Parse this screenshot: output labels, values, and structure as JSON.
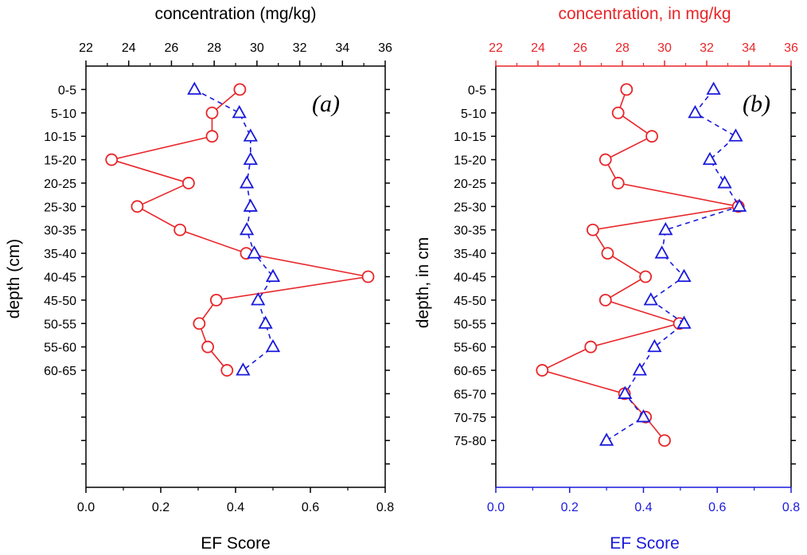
{
  "chart_data": [
    {
      "type": "line",
      "panel_label": "(a)",
      "top_axis": {
        "label": "concentration (mg/kg)",
        "range": [
          22,
          36
        ],
        "ticks": [
          "22",
          "24",
          "26",
          "28",
          "30",
          "32",
          "34",
          "36"
        ],
        "color": "#000000"
      },
      "bottom_axis": {
        "label": "EF Score",
        "range": [
          0,
          0.8
        ],
        "ticks": [
          "0.0",
          "0.2",
          "0.4",
          "0.6",
          "0.8"
        ],
        "color": "#000000"
      },
      "y_axis": {
        "label": "depth (cm)",
        "categories": [
          "0-5",
          "5-10",
          "10-15",
          "15-20",
          "20-25",
          "25-30",
          "30-35",
          "35-40",
          "40-45",
          "45-50",
          "50-55",
          "55-60",
          "60-65"
        ],
        "slots": 17
      },
      "series": [
        {
          "marker": "circle",
          "line": "solid",
          "color": "#e8262a",
          "axis": "top",
          "values": [
            29.2,
            27.9,
            27.9,
            23.2,
            26.8,
            24.4,
            26.4,
            29.5,
            35.2,
            28.1,
            27.3,
            27.7,
            28.6
          ]
        },
        {
          "marker": "triangle",
          "line": "dashed",
          "color": "#1a1adc",
          "axis": "bottom",
          "values": [
            0.29,
            0.41,
            0.44,
            0.44,
            0.43,
            0.44,
            0.43,
            0.45,
            0.5,
            0.46,
            0.48,
            0.5,
            0.42
          ]
        }
      ]
    },
    {
      "type": "line",
      "panel_label": "(b)",
      "top_axis": {
        "label": "concentration, in mg/kg",
        "range": [
          22,
          36
        ],
        "ticks": [
          "22",
          "24",
          "26",
          "28",
          "30",
          "32",
          "34",
          "36"
        ],
        "color": "#e8262a"
      },
      "bottom_axis": {
        "label": "EF Score",
        "range": [
          0,
          0.8
        ],
        "ticks": [
          "0.0",
          "0.2",
          "0.4",
          "0.6",
          "0.8"
        ],
        "color": "#1a1adc"
      },
      "y_axis": {
        "label": "depth, in cm",
        "categories": [
          "0-5",
          "5-10",
          "10-15",
          "15-20",
          "20-25",
          "25-30",
          "30-35",
          "35-40",
          "40-45",
          "45-50",
          "50-55",
          "55-60",
          "60-65",
          "65-70",
          "70-75",
          "75-80"
        ],
        "slots": 17
      },
      "series": [
        {
          "marker": "circle",
          "line": "solid",
          "color": "#e8262a",
          "axis": "top",
          "values": [
            28.2,
            27.8,
            29.4,
            27.2,
            27.8,
            33.5,
            26.6,
            27.3,
            29.1,
            27.2,
            30.7,
            26.5,
            24.2,
            28.1,
            29.1,
            30.0
          ]
        },
        {
          "marker": "triangle",
          "line": "dashed",
          "color": "#1a1adc",
          "axis": "bottom",
          "values": [
            0.59,
            0.54,
            0.65,
            0.58,
            0.62,
            0.66,
            0.46,
            0.45,
            0.51,
            0.42,
            0.51,
            0.43,
            0.39,
            0.35,
            0.4,
            0.3
          ]
        }
      ]
    }
  ]
}
